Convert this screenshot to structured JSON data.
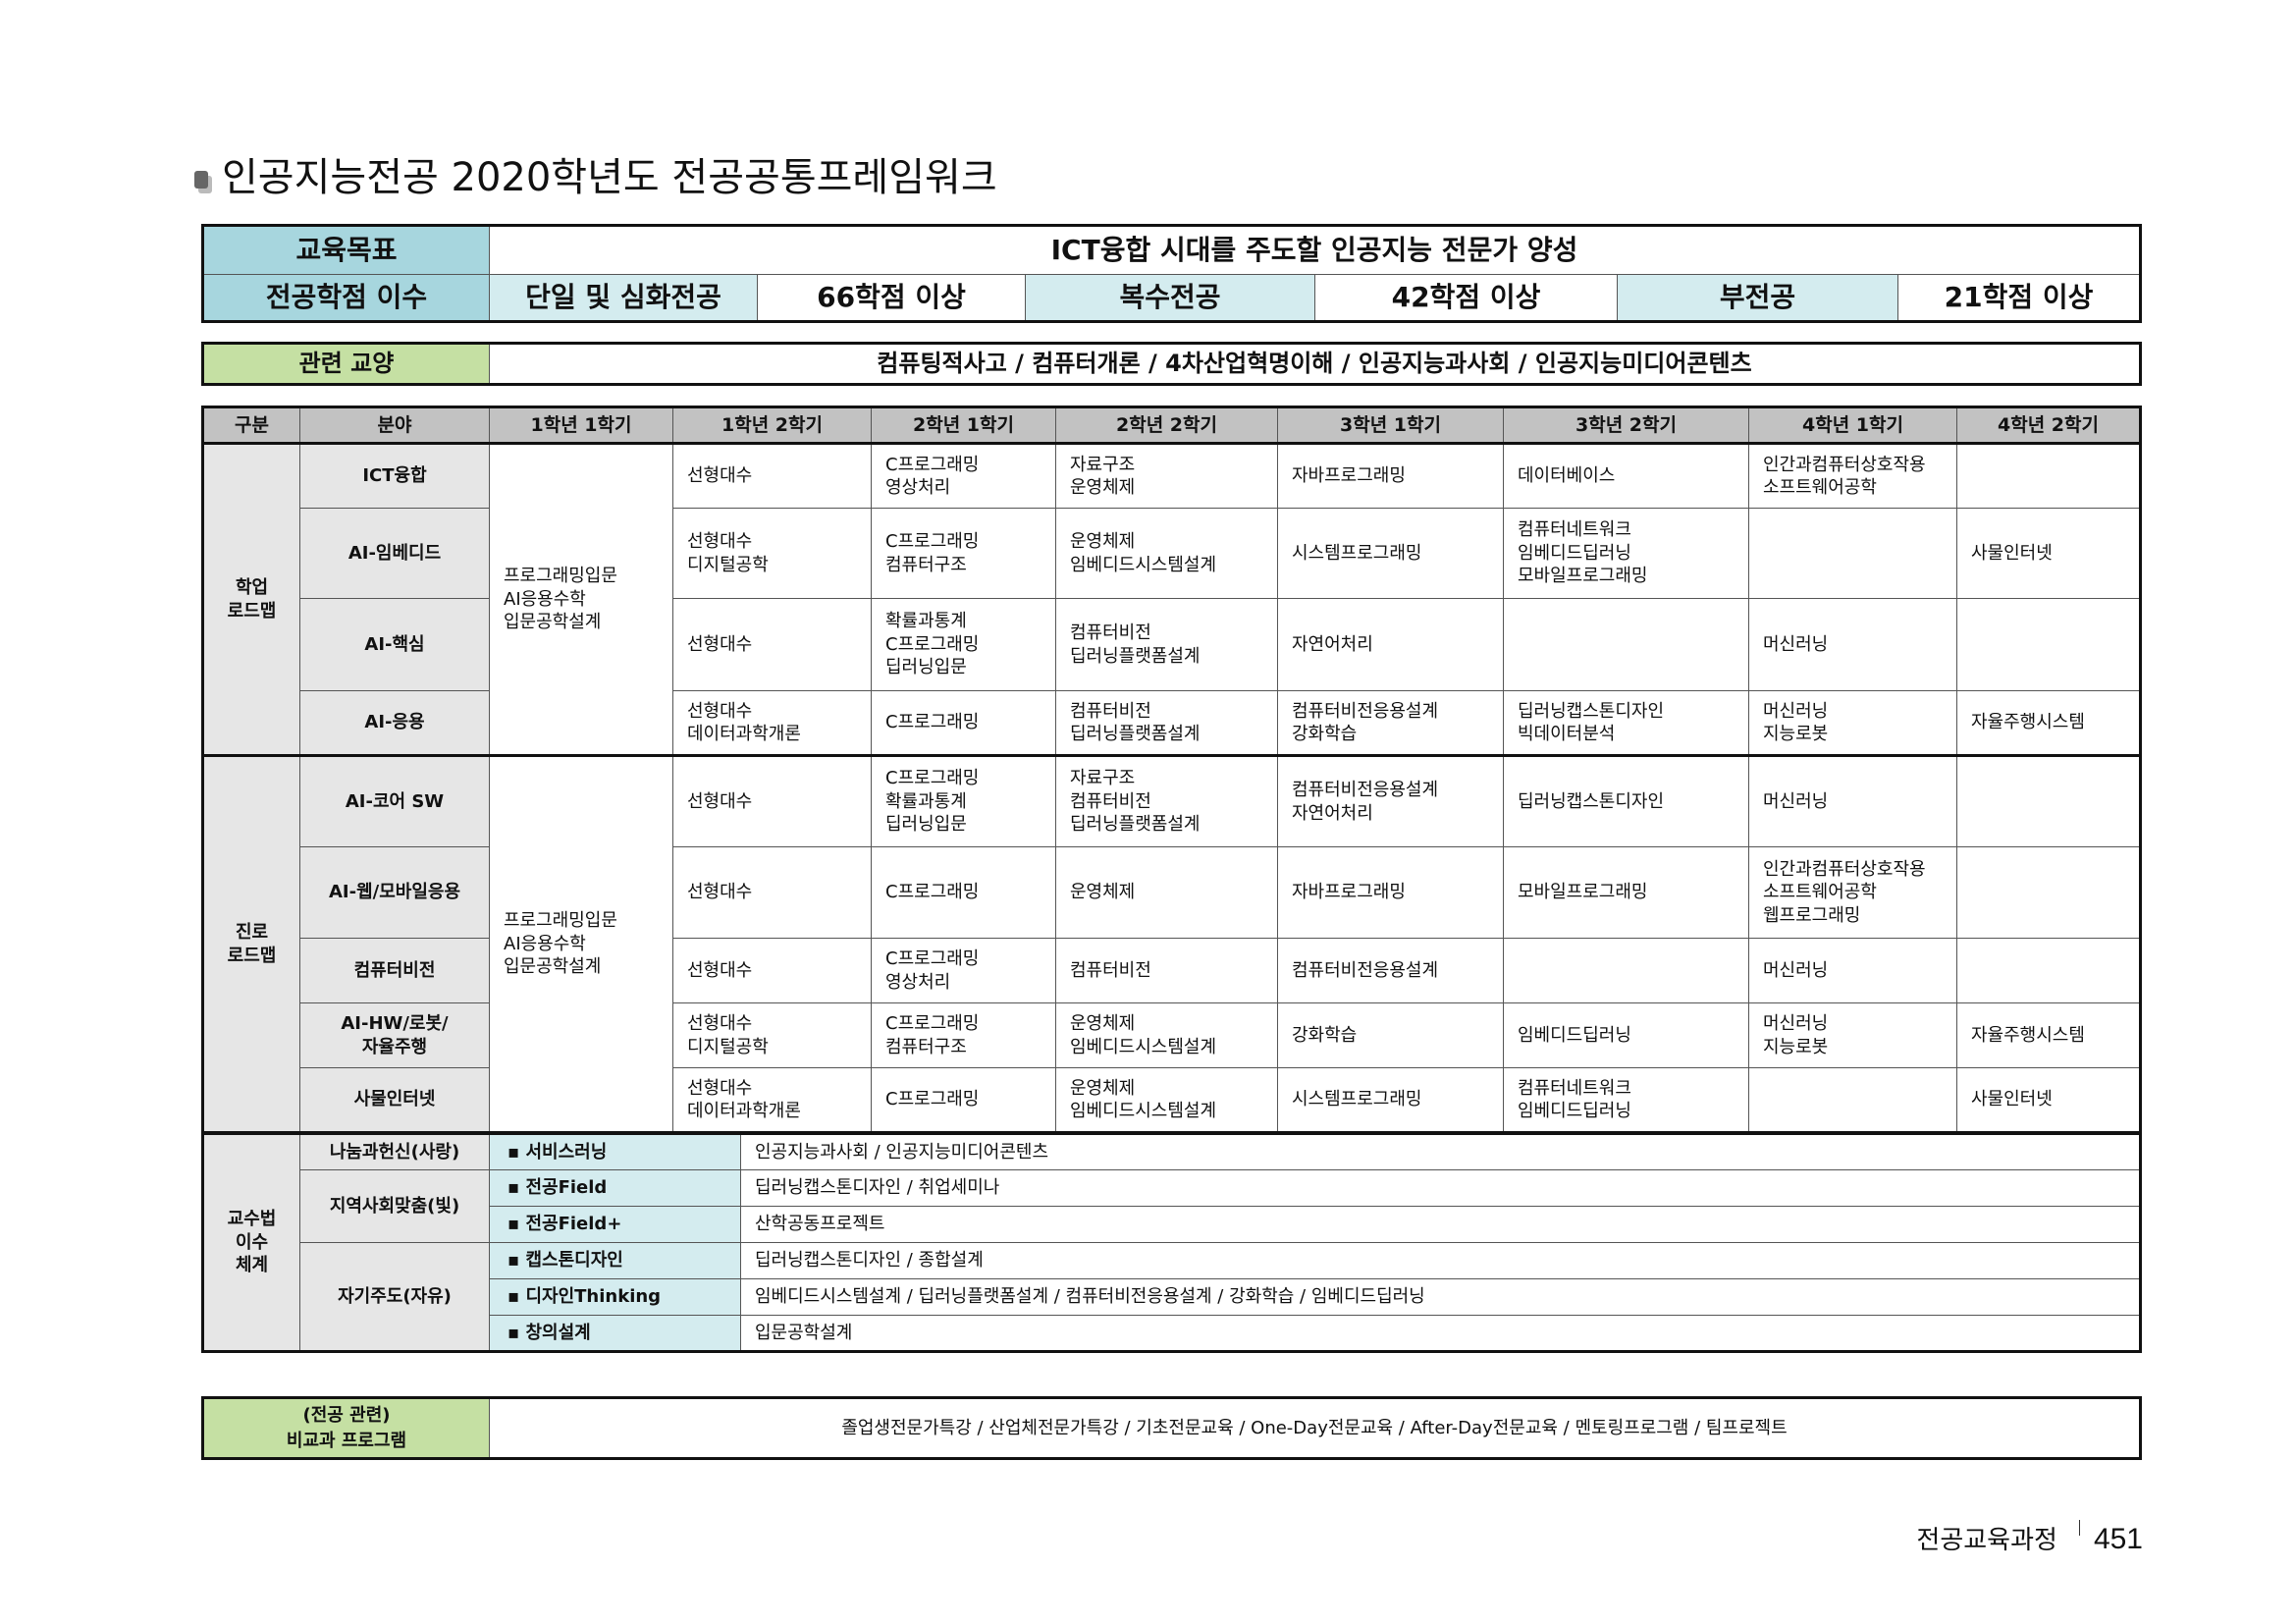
{
  "title": "인공지능전공 2020학년도 전공공통프레임워크",
  "goal": {
    "label": "교육목표",
    "value": "ICT융합 시대를 주도할 인공지능 전문가 양성"
  },
  "credits": {
    "label": "전공학점 이수",
    "items": [
      {
        "type": "단일 및 심화전공",
        "value": "66학점 이상"
      },
      {
        "type": "복수전공",
        "value": "42학점 이상"
      },
      {
        "type": "부전공",
        "value": "21학점 이상"
      }
    ]
  },
  "liberal": {
    "label": "관련 교양",
    "value": "컴퓨팅적사고 / 컴퓨터개론 / 4차산업혁명이해 / 인공지능과사회 / 인공지능미디어콘텐츠"
  },
  "roadmap": {
    "headers": [
      "구분",
      "분야",
      "1학년 1학기",
      "1학년 2학기",
      "2학년 1학기",
      "2학년 2학기",
      "3학년 1학기",
      "3학년 2학기",
      "4학년 1학기",
      "4학년 2학기"
    ],
    "groups": [
      {
        "label": "학업\n로드맵",
        "common": "프로그래밍입문\nAI응용수학\n입문공학설계",
        "rows": [
          {
            "field": "ICT융합",
            "cells": [
              "선형대수",
              "C프로그래밍\n영상처리",
              "자료구조\n운영체제",
              "자바프로그래밍",
              "데이터베이스",
              "인간과컴퓨터상호작용\n소프트웨어공학",
              ""
            ]
          },
          {
            "field": "AI-임베디드",
            "cells": [
              "선형대수\n디지털공학",
              "C프로그래밍\n컴퓨터구조",
              "운영체제\n임베디드시스템설계",
              "시스템프로그래밍",
              "컴퓨터네트워크\n임베디드딥러닝\n모바일프로그래밍",
              "",
              "사물인터넷"
            ]
          },
          {
            "field": "AI-핵심",
            "cells": [
              "선형대수",
              "확률과통계\nC프로그래밍\n딥러닝입문",
              "컴퓨터비전\n딥러닝플랫폼설계",
              "자연어처리",
              "",
              "머신러닝",
              ""
            ]
          },
          {
            "field": "AI-응용",
            "cells": [
              "선형대수\n데이터과학개론",
              "C프로그래밍",
              "컴퓨터비전\n딥러닝플랫폼설계",
              "컴퓨터비전응용설계\n강화학습",
              "딥러닝캡스톤디자인\n빅데이터분석",
              "머신러닝\n지능로봇",
              "자율주행시스템"
            ]
          }
        ]
      },
      {
        "label": "진로\n로드맵",
        "common": "프로그래밍입문\nAI응용수학\n입문공학설계",
        "rows": [
          {
            "field": "AI-코어 SW",
            "cells": [
              "선형대수",
              "C프로그래밍\n확률과통계\n딥러닝입문",
              "자료구조\n컴퓨터비전\n딥러닝플랫폼설계",
              "컴퓨터비전응용설계\n자연어처리",
              "딥러닝캡스톤디자인",
              "머신러닝",
              ""
            ]
          },
          {
            "field": "AI-웹/모바일응용",
            "cells": [
              "선형대수",
              "C프로그래밍",
              "운영체제",
              "자바프로그래밍",
              "모바일프로그래밍",
              "인간과컴퓨터상호작용\n소프트웨어공학\n웹프로그래밍",
              ""
            ]
          },
          {
            "field": "컴퓨터비전",
            "cells": [
              "선형대수",
              "C프로그래밍\n영상처리",
              "컴퓨터비전",
              "컴퓨터비전응용설계",
              "",
              "머신러닝",
              ""
            ]
          },
          {
            "field": "AI-HW/로봇/\n자율주행",
            "cells": [
              "선형대수\n디지털공학",
              "C프로그래밍\n컴퓨터구조",
              "운영체제\n임베디드시스템설계",
              "강화학습",
              "임베디드딥러닝",
              "머신러닝\n지능로봇",
              "자율주행시스템"
            ]
          },
          {
            "field": "사물인터넷",
            "cells": [
              "선형대수\n데이터과학개론",
              "C프로그래밍",
              "운영체제\n임베디드시스템설계",
              "시스템프로그래밍",
              "컴퓨터네트워크\n임베디드딥러닝",
              "",
              "사물인터넷"
            ]
          }
        ]
      }
    ]
  },
  "pedagogy": {
    "label": "교수법\n이수\n체계",
    "groups": [
      {
        "name": "나눔과헌신(사랑)",
        "items": [
          {
            "method": "서비스러닝",
            "courses": "인공지능과사회 / 인공지능미디어콘텐츠"
          }
        ]
      },
      {
        "name": "지역사회맞춤(빛)",
        "items": [
          {
            "method": "전공Field",
            "courses": "딥러닝캡스톤디자인 / 취업세미나"
          },
          {
            "method": "전공Field+",
            "courses": "산학공동프로젝트"
          }
        ]
      },
      {
        "name": "자기주도(자유)",
        "items": [
          {
            "method": "캡스톤디자인",
            "courses": "딥러닝캡스톤디자인 / 종합설계"
          },
          {
            "method": "디자인Thinking",
            "courses": "임베디드시스템설계 / 딥러닝플랫폼설계 / 컴퓨터비전응용설계 / 강화학습 / 임베디드딥러닝"
          },
          {
            "method": "창의설계",
            "courses": "입문공학설계"
          }
        ]
      }
    ]
  },
  "extracurricular": {
    "label": "(전공 관련)\n비교과 프로그램",
    "value": "졸업생전문가특강 / 산업체전문가특강 / 기초전문교육 / One-Day전문교육 / After-Day전문교육 / 멘토링프로그램 / 팀프로젝트"
  },
  "footer": {
    "section": "전공교육과정",
    "page": "451"
  },
  "colors": {
    "header_teal": "#a7d6de",
    "light_teal": "#d4ecef",
    "green": "#c5e0a3",
    "gray_header": "#c2c2c2",
    "label_gray": "#e6e6e6"
  }
}
